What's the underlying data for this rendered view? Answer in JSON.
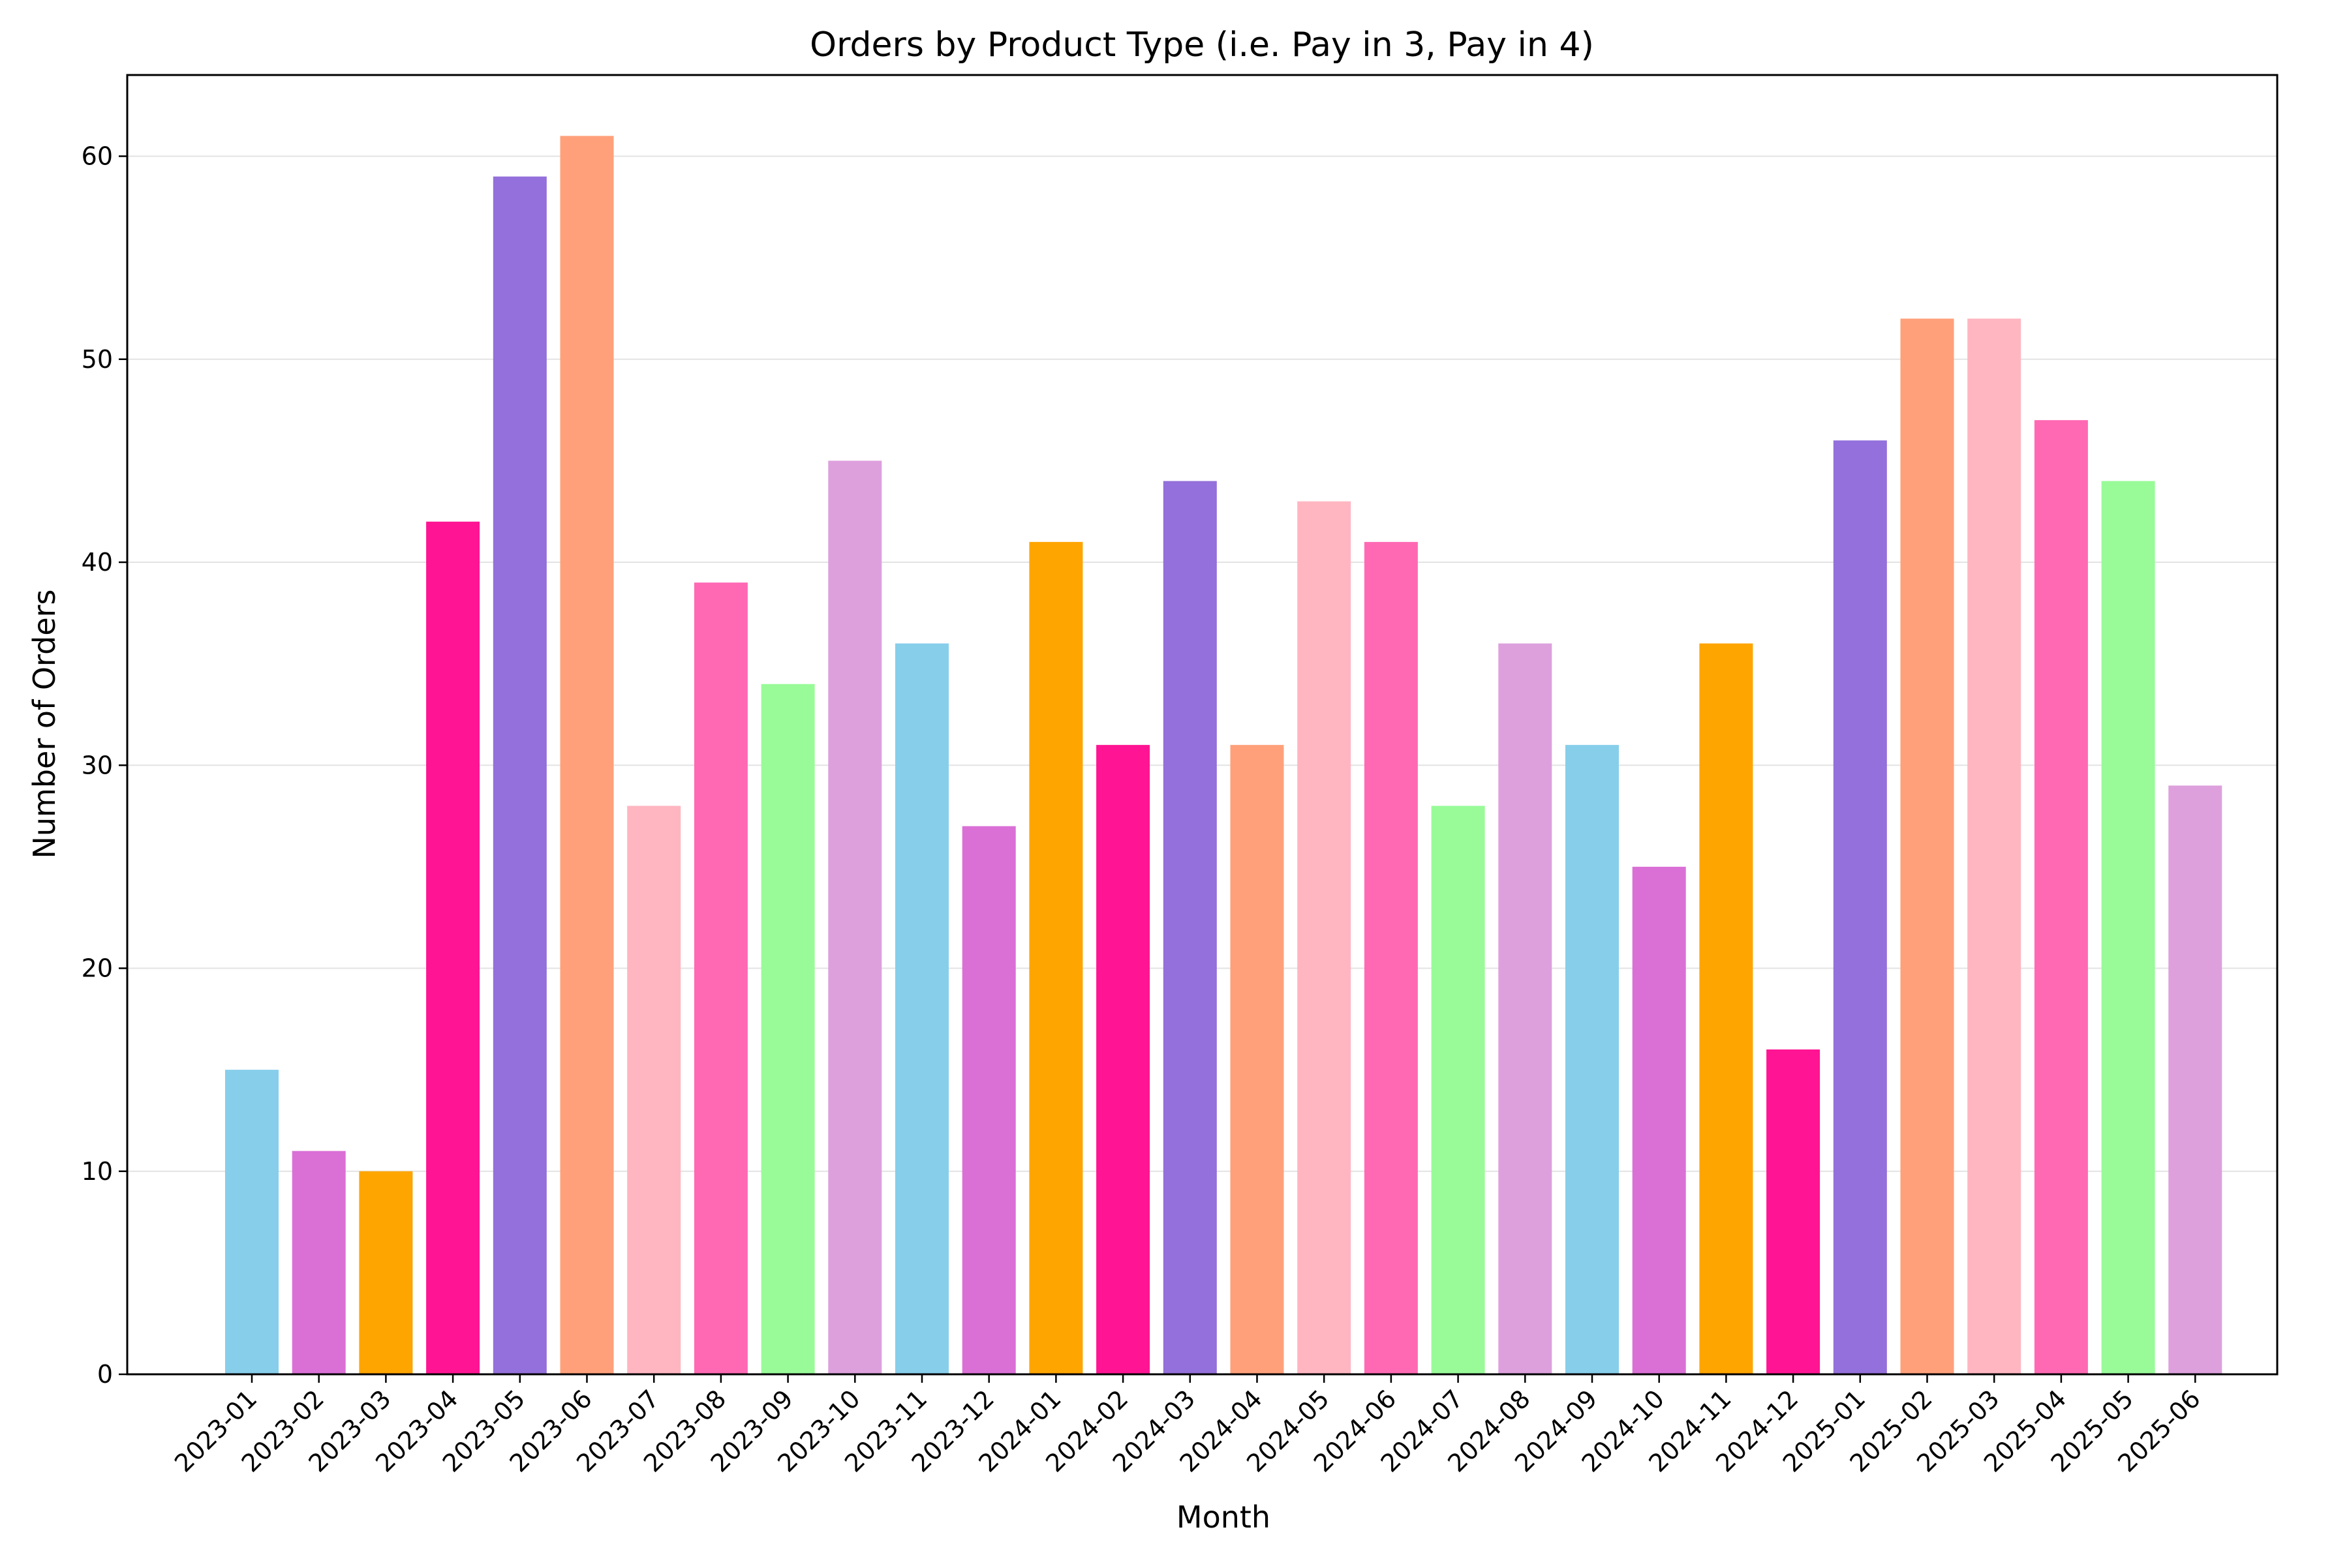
{
  "chart_data": {
    "type": "bar",
    "title": "Orders by Product Type (i.e. Pay in 3, Pay in 4)",
    "xlabel": "Month",
    "ylabel": "Number of Orders",
    "ylim": [
      0,
      64
    ],
    "yticks": [
      0,
      10,
      20,
      30,
      40,
      50,
      60
    ],
    "grid": "y",
    "categories": [
      "2023-01",
      "2023-02",
      "2023-03",
      "2023-04",
      "2023-05",
      "2023-06",
      "2023-07",
      "2023-08",
      "2023-09",
      "2023-10",
      "2023-11",
      "2023-12",
      "2024-01",
      "2024-02",
      "2024-03",
      "2024-04",
      "2024-05",
      "2024-06",
      "2024-07",
      "2024-08",
      "2024-09",
      "2024-10",
      "2024-11",
      "2024-12",
      "2025-01",
      "2025-02",
      "2025-03",
      "2025-04",
      "2025-05",
      "2025-06"
    ],
    "values": [
      15,
      11,
      10,
      42,
      59,
      61,
      28,
      39,
      34,
      45,
      36,
      27,
      41,
      31,
      44,
      31,
      43,
      41,
      28,
      36,
      31,
      25,
      36,
      16,
      46,
      52,
      52,
      47,
      44,
      29
    ],
    "colors": [
      "#87CEEB",
      "#DA70D6",
      "#FFA500",
      "#FF1493",
      "#9370DB",
      "#FFA07A",
      "#FFB6C1",
      "#FF69B4",
      "#98FB98",
      "#DDA0DD"
    ]
  }
}
